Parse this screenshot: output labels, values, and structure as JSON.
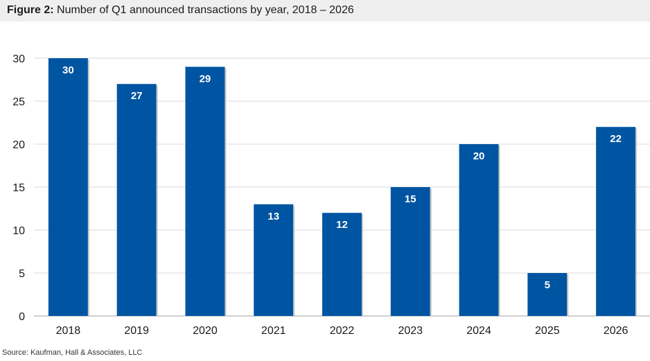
{
  "figure": {
    "label": "Figure 2:",
    "title": "Number of Q1 announced transactions by year, 2018 – 2026"
  },
  "source": "Source: Kaufman, Hall & Associates, LLC",
  "colors": {
    "bar": "#0055a2",
    "grid": "#d9d9d9",
    "axis": "#bfbfbf",
    "title_bg": "#efefef"
  },
  "chart_data": {
    "type": "bar",
    "title": "Number of Q1 announced transactions by year, 2018 – 2026",
    "categories": [
      "2018",
      "2019",
      "2020",
      "2021",
      "2022",
      "2023",
      "2024",
      "2025",
      "2026"
    ],
    "values": [
      30,
      27,
      29,
      13,
      12,
      15,
      20,
      5,
      22
    ],
    "ylim": [
      0,
      30
    ],
    "yticks": [
      "0",
      "5",
      "10",
      "15",
      "20",
      "25",
      "30"
    ],
    "xlabel": "",
    "ylabel": "",
    "grid": true,
    "data_labels": true,
    "legend": "none"
  }
}
